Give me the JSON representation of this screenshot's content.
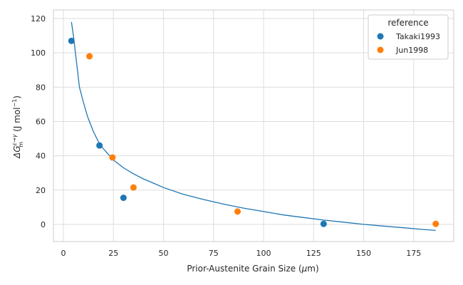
{
  "chart_data": {
    "type": "scatter",
    "xlabel_main": "Prior-Austenite Grain Size (",
    "xlabel_unit_greek": "μ",
    "xlabel_unit_rest": "m)",
    "ylabel_delta": "Δ",
    "ylabel_G": "G",
    "ylabel_sup": "ε→γ",
    "ylabel_sub": "m",
    "ylabel_units": "(J mol",
    "ylabel_exp": "−1",
    "ylabel_close": ")",
    "xlim": [
      -5,
      195
    ],
    "ylim": [
      -10,
      125
    ],
    "xticks": [
      0,
      25,
      50,
      75,
      100,
      125,
      150,
      175
    ],
    "xtick_labels": [
      "0",
      "25",
      "50",
      "75",
      "100",
      "125",
      "150",
      "175"
    ],
    "yticks": [
      0,
      20,
      40,
      60,
      80,
      100,
      120
    ],
    "ytick_labels": [
      "0",
      "20",
      "40",
      "60",
      "80",
      "100",
      "120"
    ],
    "grid": true,
    "legend": {
      "title": "reference",
      "placement": "top-right",
      "entries": [
        {
          "label": "Takaki1993",
          "color": "#1f77b4"
        },
        {
          "label": "Jun1998",
          "color": "#ff7f0e"
        }
      ]
    },
    "series": [
      {
        "name": "Takaki1993",
        "color": "#1f77b4",
        "points": [
          [
            4,
            107
          ],
          [
            18,
            46
          ],
          [
            30,
            15.5
          ],
          [
            130,
            0.3
          ]
        ]
      },
      {
        "name": "Jun1998",
        "color": "#ff7f0e",
        "points": [
          [
            13,
            98
          ],
          [
            24.5,
            39
          ],
          [
            35,
            21.5
          ],
          [
            87,
            7.5
          ],
          [
            186,
            0.3
          ]
        ]
      }
    ],
    "fit_line": {
      "color": "#1f77b4",
      "points": [
        [
          4,
          118
        ],
        [
          5,
          110
        ],
        [
          6,
          100
        ],
        [
          7,
          90
        ],
        [
          8,
          80
        ],
        [
          10,
          71
        ],
        [
          12,
          63
        ],
        [
          15,
          54
        ],
        [
          18,
          47
        ],
        [
          20,
          44
        ],
        [
          25,
          37.5
        ],
        [
          30,
          33
        ],
        [
          35,
          29.5
        ],
        [
          40,
          26.5
        ],
        [
          45,
          24
        ],
        [
          50,
          21.5
        ],
        [
          60,
          17.5
        ],
        [
          70,
          14.5
        ],
        [
          80,
          11.8
        ],
        [
          90,
          9.5
        ],
        [
          100,
          7.5
        ],
        [
          110,
          5.5
        ],
        [
          120,
          4
        ],
        [
          130,
          2.5
        ],
        [
          140,
          1.3
        ],
        [
          150,
          0
        ],
        [
          160,
          -1
        ],
        [
          170,
          -2
        ],
        [
          180,
          -3
        ],
        [
          186,
          -3.5
        ]
      ]
    }
  }
}
